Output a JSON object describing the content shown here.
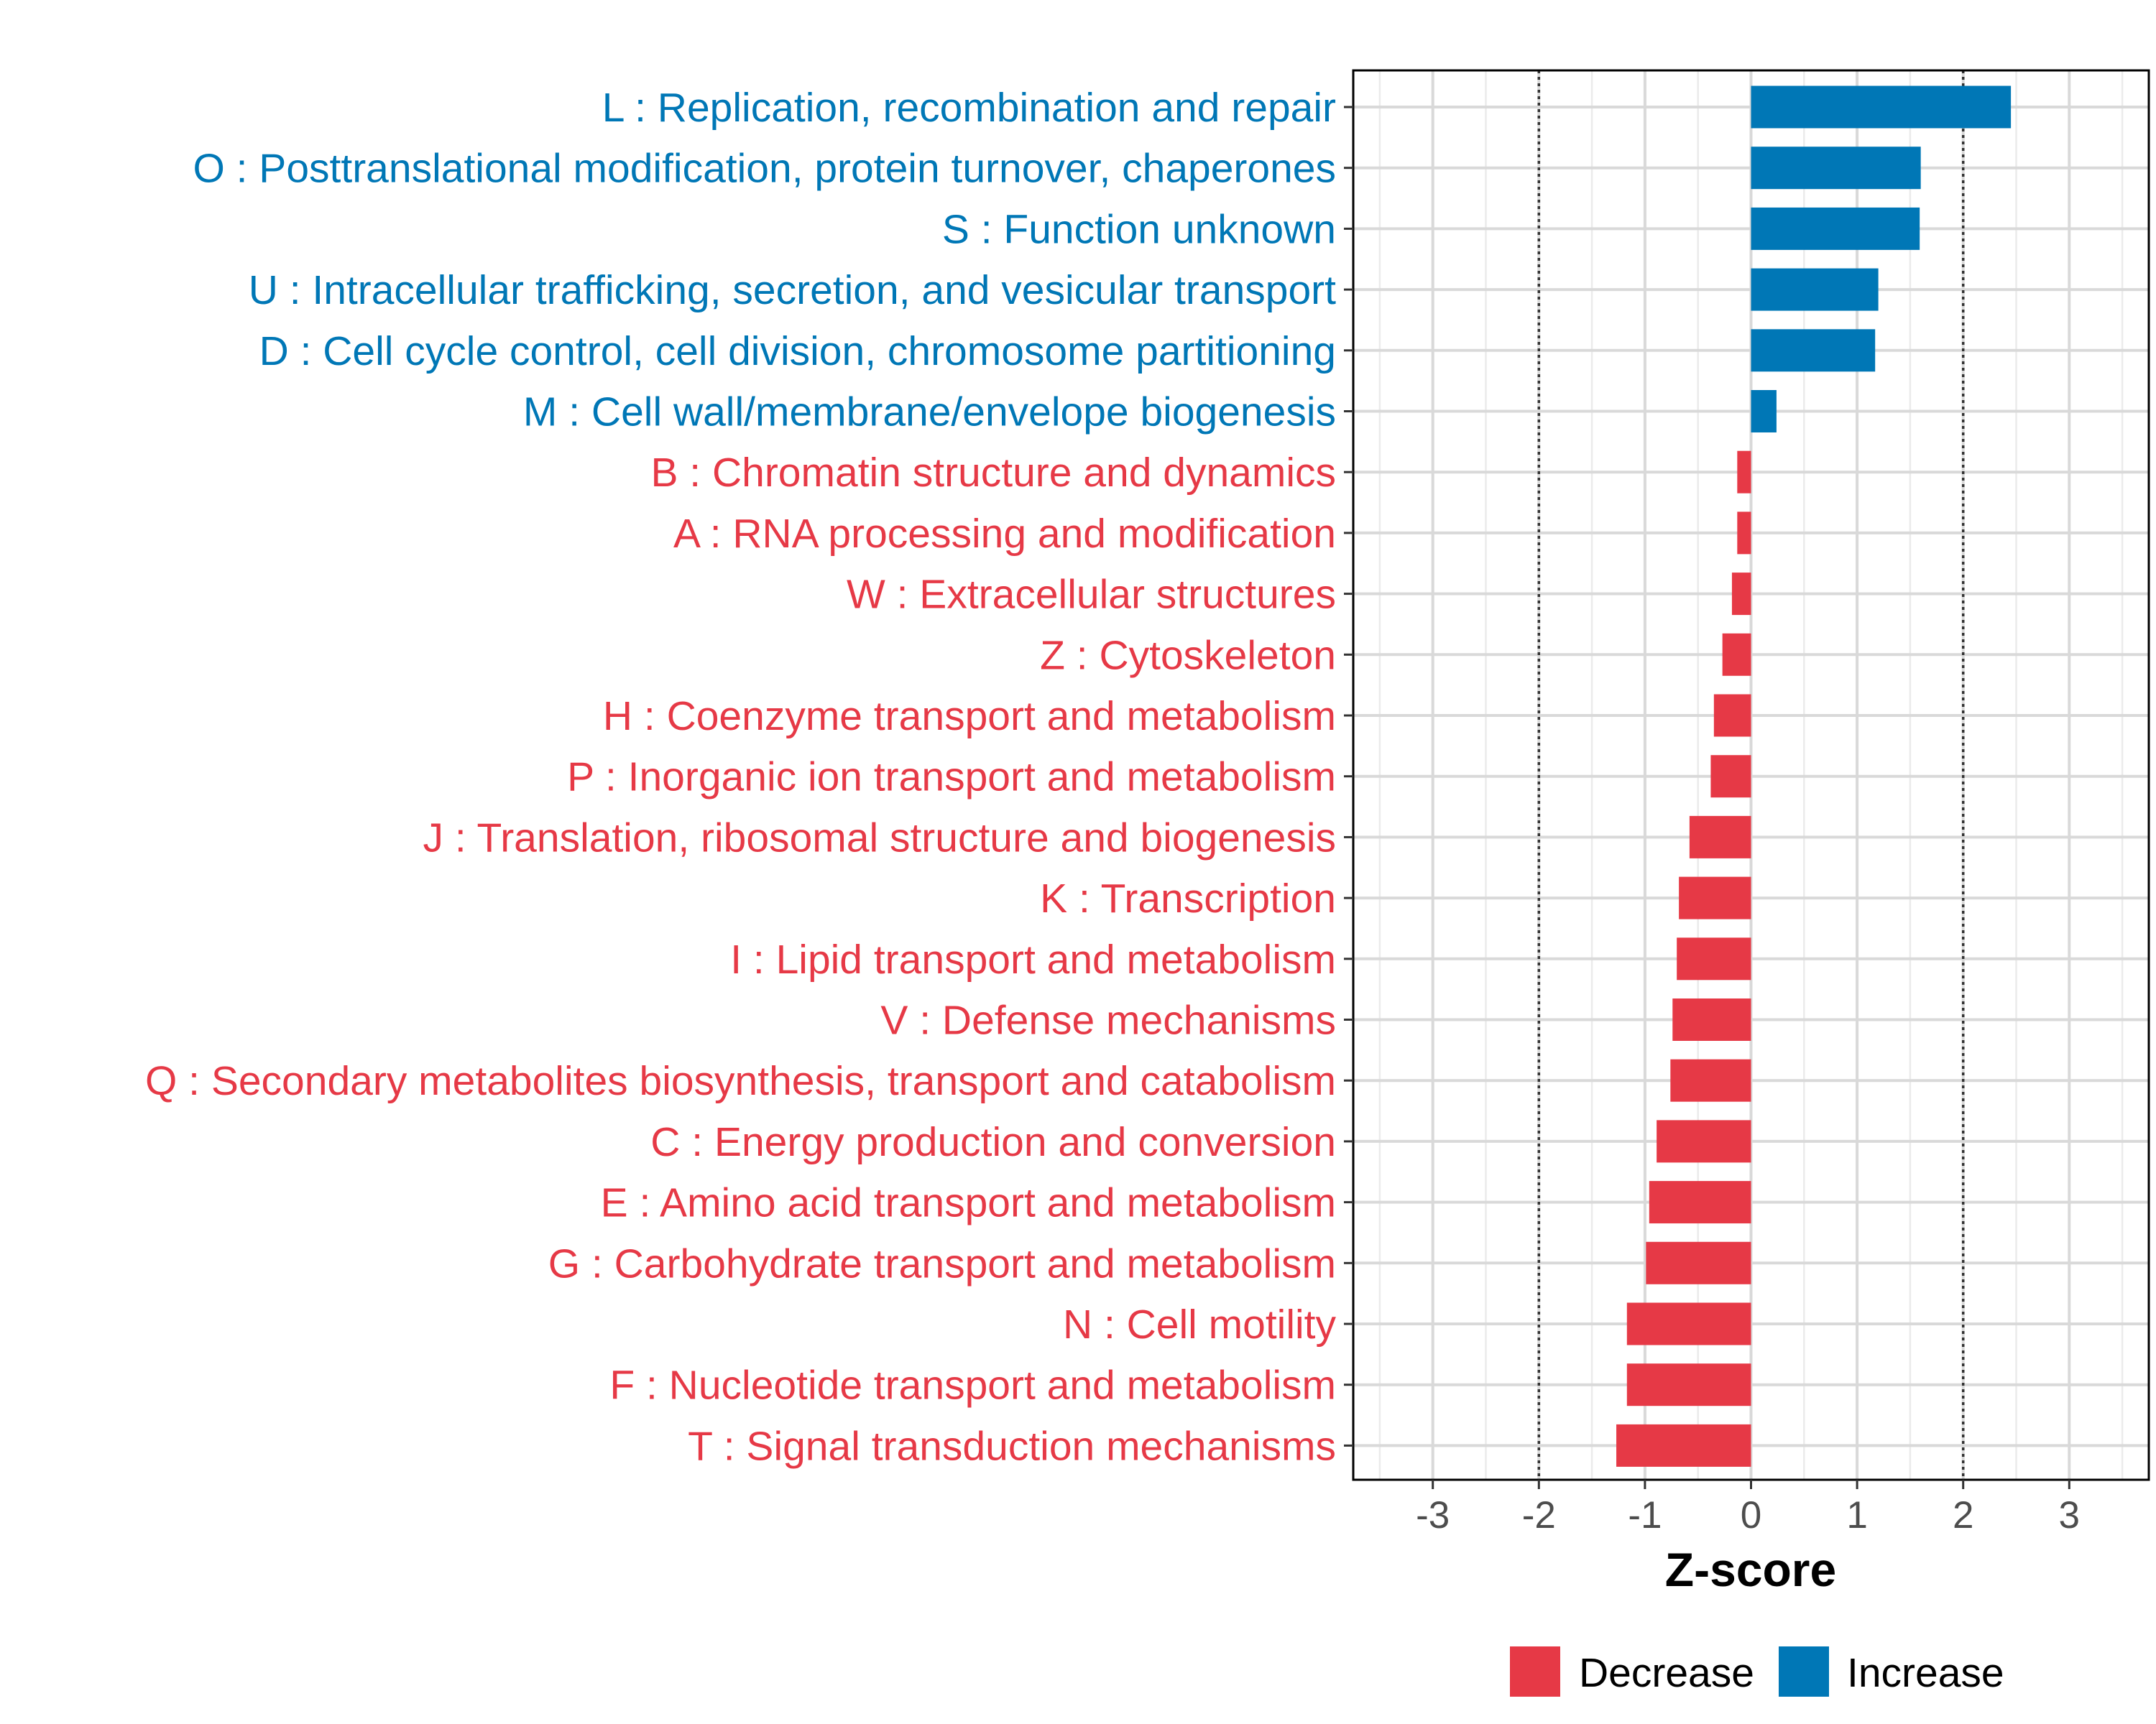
{
  "chart_data": {
    "type": "bar",
    "orientation": "horizontal",
    "title": "",
    "xlabel": "Z-score",
    "ylabel": "",
    "xlim": [
      -3.75,
      3.75
    ],
    "xticks": [
      -3,
      -2,
      -1,
      0,
      1,
      2,
      3
    ],
    "xtick_labels": [
      "-3",
      "-2",
      "-1",
      "0",
      "1",
      "2",
      "3"
    ],
    "reference_lines": [
      -2,
      2
    ],
    "grid": true,
    "legend_position": "bottom",
    "colors": {
      "Decrease": "#e63946",
      "Increase": "#0077b6"
    },
    "legend": [
      {
        "label": "Decrease",
        "color": "#e63946"
      },
      {
        "label": "Increase",
        "color": "#0077b6"
      }
    ],
    "categories": [
      "L : Replication, recombination and repair",
      "O : Posttranslational modification, protein turnover, chaperones",
      "S : Function unknown",
      "U : Intracellular trafficking, secretion, and vesicular transport",
      "D : Cell cycle control, cell division, chromosome partitioning",
      "M : Cell wall/membrane/envelope biogenesis",
      "B : Chromatin structure and dynamics",
      "A : RNA processing and modification",
      "W : Extracellular structures",
      "Z : Cytoskeleton",
      "H : Coenzyme transport and metabolism",
      "P : Inorganic ion transport and metabolism",
      "J : Translation, ribosomal structure and biogenesis",
      "K : Transcription",
      "I : Lipid transport and metabolism",
      "V : Defense mechanisms",
      "Q : Secondary metabolites biosynthesis, transport and catabolism",
      "C : Energy production and conversion",
      "E : Amino acid transport and metabolism",
      "G : Carbohydrate transport and metabolism",
      "N : Cell motility",
      "F : Nucleotide transport and metabolism",
      "T : Signal transduction mechanisms"
    ],
    "values": [
      2.45,
      1.6,
      1.59,
      1.2,
      1.17,
      0.24,
      -0.13,
      -0.13,
      -0.18,
      -0.27,
      -0.35,
      -0.38,
      -0.58,
      -0.68,
      -0.7,
      -0.74,
      -0.76,
      -0.89,
      -0.96,
      -0.99,
      -1.17,
      -1.17,
      -1.27
    ],
    "groups": [
      "Increase",
      "Increase",
      "Increase",
      "Increase",
      "Increase",
      "Increase",
      "Decrease",
      "Decrease",
      "Decrease",
      "Decrease",
      "Decrease",
      "Decrease",
      "Decrease",
      "Decrease",
      "Decrease",
      "Decrease",
      "Decrease",
      "Decrease",
      "Decrease",
      "Decrease",
      "Decrease",
      "Decrease",
      "Decrease"
    ]
  }
}
